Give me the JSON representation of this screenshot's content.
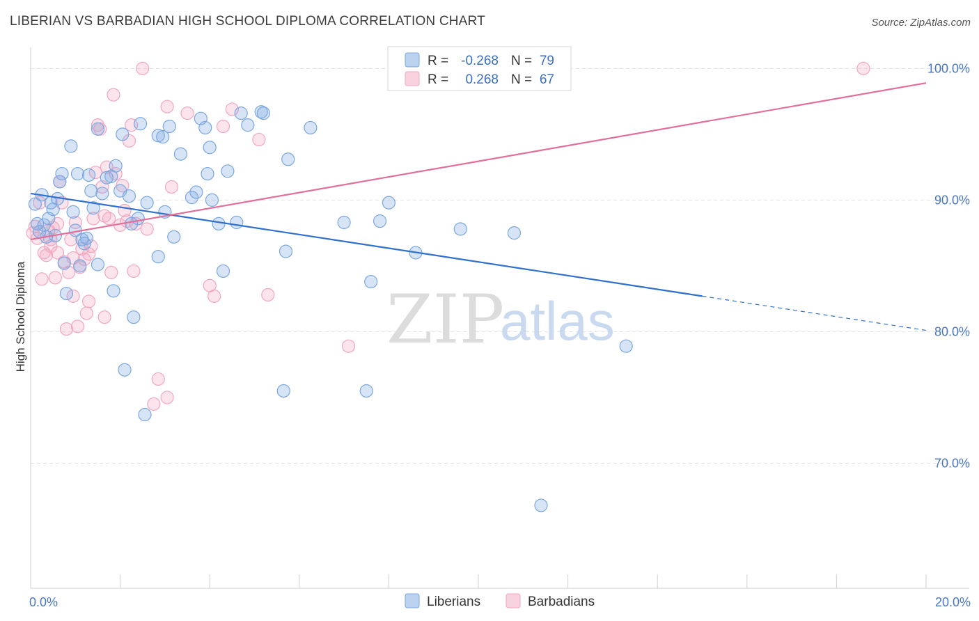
{
  "title": "LIBERIAN VS BARBADIAN HIGH SCHOOL DIPLOMA CORRELATION CHART",
  "source": "Source: ZipAtlas.com",
  "watermark": {
    "zip": "ZIP",
    "atlas": "atlas"
  },
  "chart_data": {
    "type": "scatter",
    "title": "LIBERIAN VS BARBADIAN HIGH SCHOOL DIPLOMA CORRELATION CHART",
    "xlabel": "",
    "ylabel": "High School Diploma",
    "xlim": [
      0,
      20
    ],
    "ylim": [
      60.5,
      101.5
    ],
    "x_tick_labels": [
      {
        "value": 0,
        "label": "0.0%"
      },
      {
        "value": 20,
        "label": "20.0%"
      }
    ],
    "y_tick_labels": [
      {
        "value": 100,
        "label": "100.0%"
      },
      {
        "value": 90,
        "label": "90.0%"
      },
      {
        "value": 80,
        "label": "80.0%"
      },
      {
        "value": 70,
        "label": "70.0%"
      }
    ],
    "grid": true,
    "legend_placement": "top-center",
    "legend": [
      {
        "r_label": "R =",
        "r_value": "-0.268",
        "n_label": "N =",
        "n_value": "79"
      },
      {
        "r_label": "R =",
        "r_value": "0.268",
        "n_label": "N =",
        "n_value": "67"
      }
    ],
    "series": [
      {
        "name": "Liberians",
        "color": "#7aa7e0",
        "trend_color": "#2f6fcd",
        "trend": {
          "x0": 0,
          "y0": 90.5,
          "x1": 15,
          "y1": 82.7,
          "dash_to_x": 20,
          "dash_to_y": 80.1
        },
        "points": [
          [
            0.1,
            89.7
          ],
          [
            0.15,
            88.2
          ],
          [
            0.2,
            87.6
          ],
          [
            0.25,
            90.4
          ],
          [
            0.3,
            88.1
          ],
          [
            0.35,
            87.2
          ],
          [
            0.4,
            88.6
          ],
          [
            0.45,
            89.8
          ],
          [
            0.5,
            89.3
          ],
          [
            0.55,
            87.3
          ],
          [
            0.6,
            90.1
          ],
          [
            0.65,
            91.4
          ],
          [
            0.7,
            92.0
          ],
          [
            0.75,
            85.2
          ],
          [
            0.8,
            82.9
          ],
          [
            0.9,
            94.1
          ],
          [
            0.95,
            89.1
          ],
          [
            1.0,
            87.7
          ],
          [
            1.05,
            92.0
          ],
          [
            1.1,
            85.0
          ],
          [
            1.15,
            87.0
          ],
          [
            1.2,
            86.7
          ],
          [
            1.25,
            87.1
          ],
          [
            1.3,
            91.9
          ],
          [
            1.35,
            90.7
          ],
          [
            1.4,
            89.4
          ],
          [
            1.5,
            85.1
          ],
          [
            1.5,
            95.4
          ],
          [
            1.6,
            90.5
          ],
          [
            1.7,
            91.7
          ],
          [
            1.8,
            91.8
          ],
          [
            1.85,
            83.1
          ],
          [
            1.9,
            92.6
          ],
          [
            2.0,
            90.7
          ],
          [
            2.05,
            95.0
          ],
          [
            2.1,
            77.1
          ],
          [
            2.2,
            90.3
          ],
          [
            2.25,
            88.2
          ],
          [
            2.3,
            81.1
          ],
          [
            2.4,
            88.6
          ],
          [
            2.45,
            95.8
          ],
          [
            2.55,
            73.7
          ],
          [
            2.6,
            89.8
          ],
          [
            2.85,
            85.7
          ],
          [
            2.85,
            94.9
          ],
          [
            2.95,
            94.8
          ],
          [
            3.0,
            89.1
          ],
          [
            3.1,
            95.6
          ],
          [
            3.2,
            87.2
          ],
          [
            3.35,
            93.5
          ],
          [
            3.6,
            90.2
          ],
          [
            3.7,
            90.6
          ],
          [
            3.8,
            96.2
          ],
          [
            3.9,
            95.5
          ],
          [
            3.95,
            92.0
          ],
          [
            4.0,
            94.0
          ],
          [
            4.05,
            90.0
          ],
          [
            4.2,
            88.2
          ],
          [
            4.3,
            84.6
          ],
          [
            4.4,
            92.2
          ],
          [
            4.6,
            88.3
          ],
          [
            4.7,
            96.6
          ],
          [
            4.85,
            95.7
          ],
          [
            5.15,
            96.7
          ],
          [
            5.2,
            96.6
          ],
          [
            5.65,
            75.5
          ],
          [
            5.7,
            86.1
          ],
          [
            5.75,
            93.1
          ],
          [
            6.25,
            95.5
          ],
          [
            7.0,
            88.3
          ],
          [
            7.5,
            75.5
          ],
          [
            7.6,
            83.8
          ],
          [
            7.8,
            88.4
          ],
          [
            8.0,
            89.8
          ],
          [
            8.6,
            86.0
          ],
          [
            9.6,
            87.8
          ],
          [
            10.8,
            87.5
          ],
          [
            11.4,
            66.8
          ],
          [
            13.3,
            78.9
          ]
        ]
      },
      {
        "name": "Barbadians",
        "color": "#f1a7bf",
        "trend_color": "#e26f9a",
        "trend": {
          "x0": 0,
          "y0": 87.0,
          "x1": 20,
          "y1": 98.9
        },
        "points": [
          [
            0.05,
            87.5
          ],
          [
            0.1,
            88.0
          ],
          [
            0.15,
            87.1
          ],
          [
            0.2,
            89.8
          ],
          [
            0.25,
            84.0
          ],
          [
            0.3,
            86.0
          ],
          [
            0.35,
            85.8
          ],
          [
            0.4,
            87.7
          ],
          [
            0.45,
            86.5
          ],
          [
            0.5,
            87.9
          ],
          [
            0.55,
            84.1
          ],
          [
            0.6,
            88.2
          ],
          [
            0.65,
            91.4
          ],
          [
            0.7,
            89.8
          ],
          [
            0.75,
            85.3
          ],
          [
            0.8,
            80.2
          ],
          [
            0.85,
            84.5
          ],
          [
            0.9,
            87.0
          ],
          [
            0.95,
            85.6
          ],
          [
            1.0,
            88.3
          ],
          [
            1.05,
            80.4
          ],
          [
            1.1,
            84.9
          ],
          [
            1.15,
            86.3
          ],
          [
            1.2,
            85.5
          ],
          [
            1.25,
            81.4
          ],
          [
            1.3,
            82.3
          ],
          [
            1.35,
            86.5
          ],
          [
            1.4,
            88.6
          ],
          [
            1.45,
            92.1
          ],
          [
            1.5,
            95.7
          ],
          [
            1.55,
            95.4
          ],
          [
            1.6,
            91.0
          ],
          [
            1.65,
            88.8
          ],
          [
            1.7,
            92.5
          ],
          [
            1.75,
            88.6
          ],
          [
            1.8,
            84.5
          ],
          [
            1.85,
            98.0
          ],
          [
            1.9,
            92.0
          ],
          [
            2.0,
            88.1
          ],
          [
            2.05,
            91.1
          ],
          [
            2.1,
            89.2
          ],
          [
            2.15,
            88.4
          ],
          [
            2.2,
            94.5
          ],
          [
            2.25,
            95.7
          ],
          [
            2.3,
            84.6
          ],
          [
            2.35,
            88.2
          ],
          [
            2.5,
            100.0
          ],
          [
            2.6,
            87.8
          ],
          [
            2.75,
            74.5
          ],
          [
            2.85,
            76.4
          ],
          [
            3.05,
            75.0
          ],
          [
            3.05,
            97.1
          ],
          [
            3.15,
            91.0
          ],
          [
            3.5,
            96.6
          ],
          [
            4.0,
            83.5
          ],
          [
            4.1,
            82.7
          ],
          [
            4.3,
            95.6
          ],
          [
            4.5,
            96.9
          ],
          [
            5.1,
            94.6
          ],
          [
            5.3,
            82.8
          ],
          [
            7.1,
            78.9
          ],
          [
            18.6,
            100.0
          ],
          [
            0.45,
            87.0
          ],
          [
            0.6,
            86.0
          ],
          [
            0.95,
            82.7
          ],
          [
            1.3,
            85.9
          ],
          [
            1.65,
            81.1
          ]
        ]
      }
    ]
  }
}
